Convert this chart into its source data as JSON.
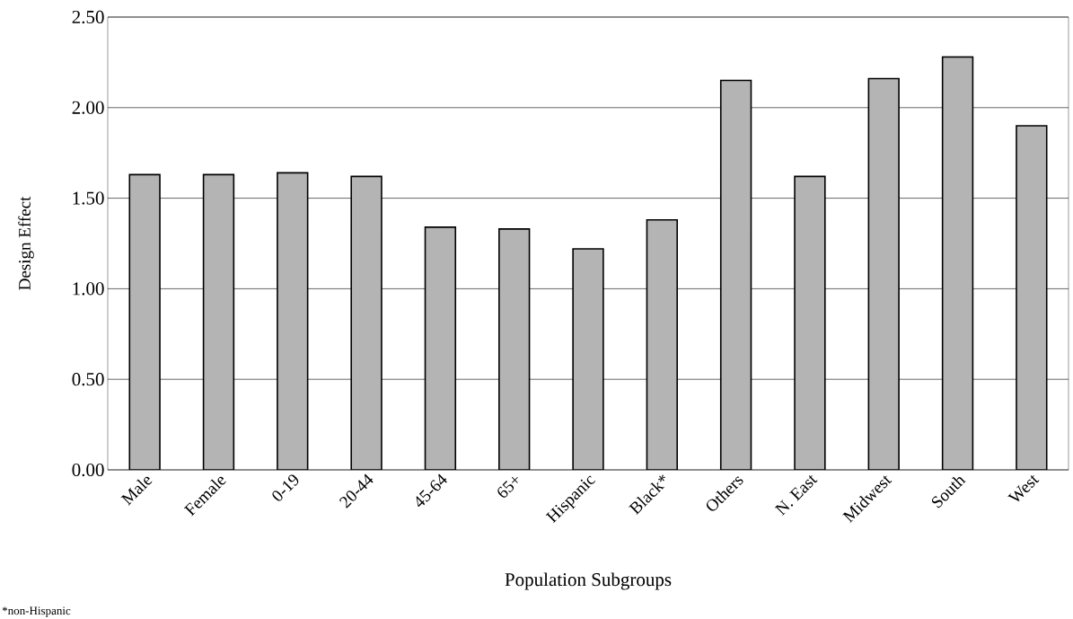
{
  "chart_data": {
    "type": "bar",
    "xlabel": "Population Subgroups",
    "ylabel": "Design Effect",
    "categories": [
      "Male",
      "Female",
      "0-19",
      "20-44",
      "45-64",
      "65+",
      "Hispanic",
      "Black*",
      "Others",
      "N. East",
      "Midwest",
      "South",
      "West"
    ],
    "values": [
      1.63,
      1.63,
      1.64,
      1.62,
      1.34,
      1.33,
      1.22,
      1.38,
      2.15,
      1.62,
      2.16,
      2.28,
      1.9
    ],
    "color": "#b4b4b4",
    "ylim": [
      0,
      2.5
    ],
    "yticks": [
      {
        "value": 0,
        "label": "0.00"
      },
      {
        "value": 0.5,
        "label": "0.50"
      },
      {
        "value": 1,
        "label": "1.00"
      },
      {
        "value": 1.5,
        "label": "1.50"
      },
      {
        "value": 2,
        "label": "2.00"
      },
      {
        "value": 2.5,
        "label": "2.50"
      }
    ],
    "grid": "y",
    "annotations": [
      "*non-Hispanic"
    ]
  }
}
